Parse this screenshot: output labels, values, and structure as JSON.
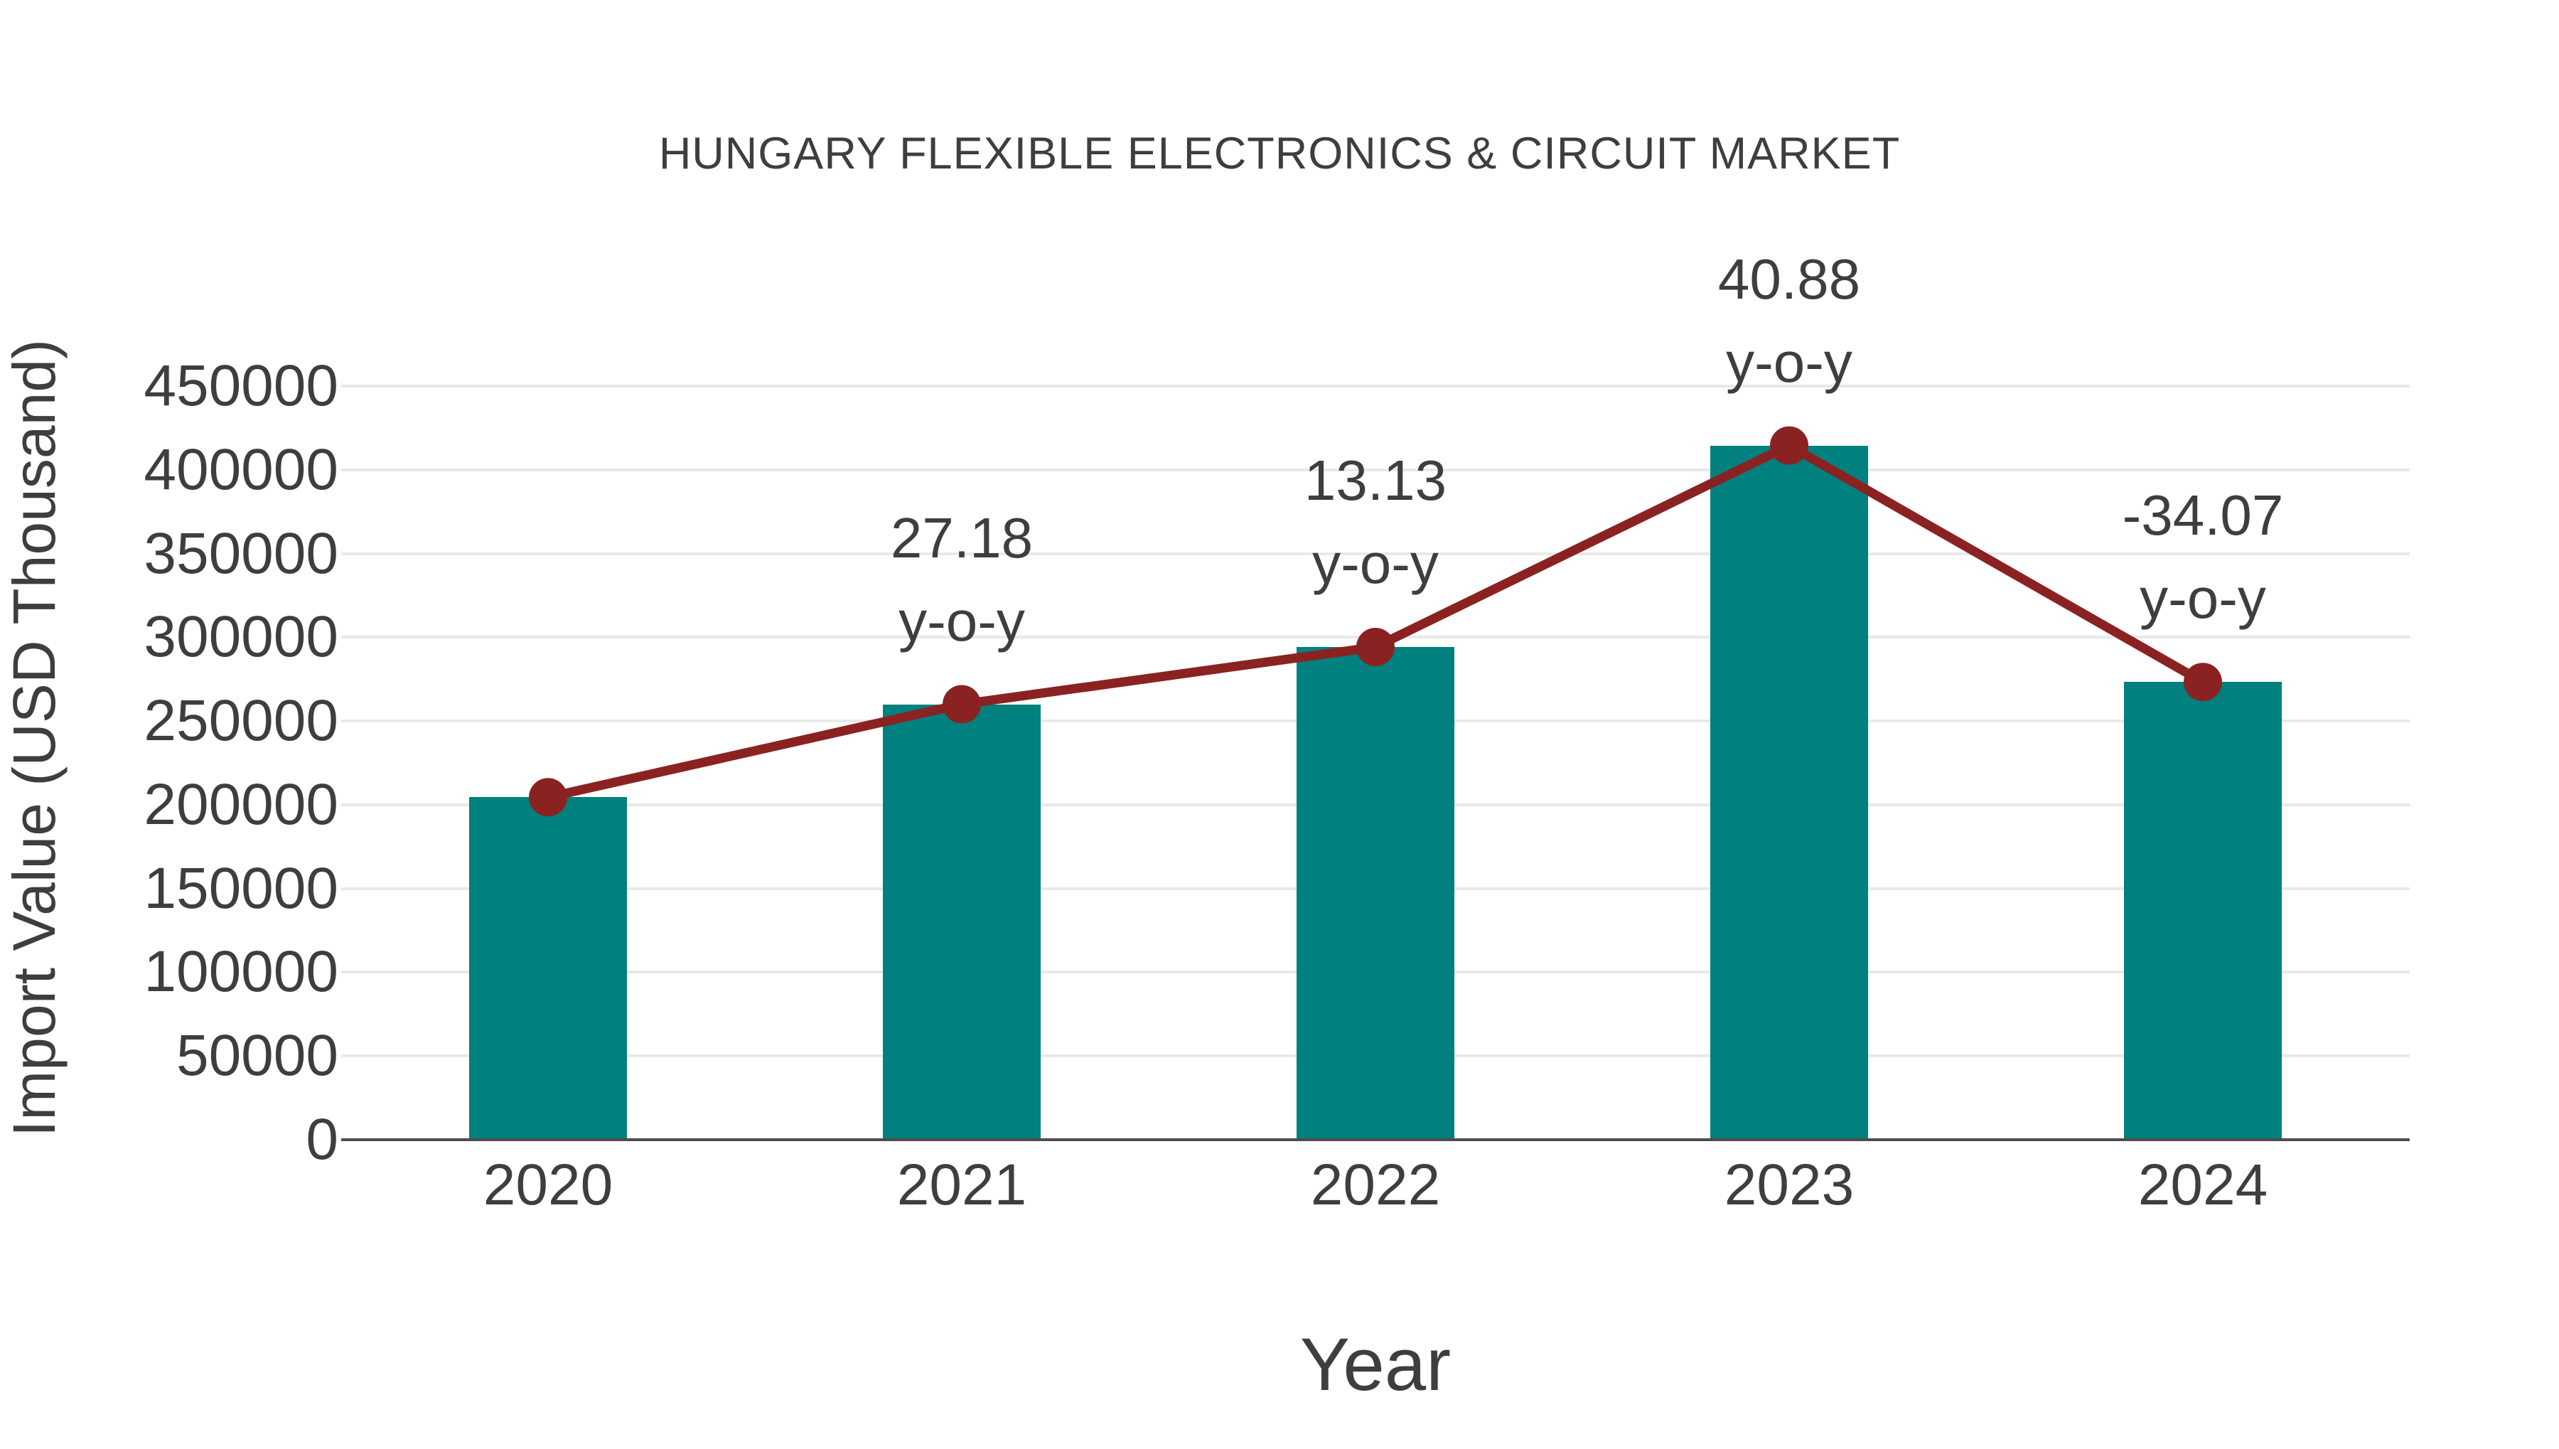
{
  "title": "HUNGARY FLEXIBLE ELECTRONICS & CIRCUIT MARKET",
  "colors": {
    "bar": "#00807E",
    "line": "#8B2222",
    "marker": "#8B2222",
    "text": "#3E3E3E",
    "grid": "#E9E9E9",
    "axis": "#4D4D4D",
    "background": "#FFFFFF"
  },
  "chart_data": {
    "type": "bar",
    "title": "HUNGARY FLEXIBLE ELECTRONICS & CIRCUIT MARKET",
    "xlabel": "Year",
    "ylabel": "Import Value (USD Thousand)",
    "categories": [
      "2020",
      "2021",
      "2022",
      "2023",
      "2024"
    ],
    "series": [
      {
        "name": "Import Value bars",
        "type": "bar",
        "values": [
          204500,
          260000,
          294200,
          414500,
          273300
        ]
      },
      {
        "name": "Import Value trend line",
        "type": "line",
        "values": [
          204500,
          260000,
          294200,
          414500,
          273300
        ]
      }
    ],
    "annotations": [
      {
        "category": "2021",
        "value_label": "27.18",
        "sub_label": "y-o-y"
      },
      {
        "category": "2022",
        "value_label": "13.13",
        "sub_label": "y-o-y"
      },
      {
        "category": "2023",
        "value_label": "40.88",
        "sub_label": "y-o-y"
      },
      {
        "category": "2024",
        "value_label": "-34.07",
        "sub_label": "y-o-y"
      }
    ],
    "yticks": [
      0,
      50000,
      100000,
      150000,
      200000,
      250000,
      300000,
      350000,
      400000,
      450000
    ],
    "ylim": [
      0,
      450000
    ],
    "grid": "horizontal",
    "legend": "none"
  }
}
